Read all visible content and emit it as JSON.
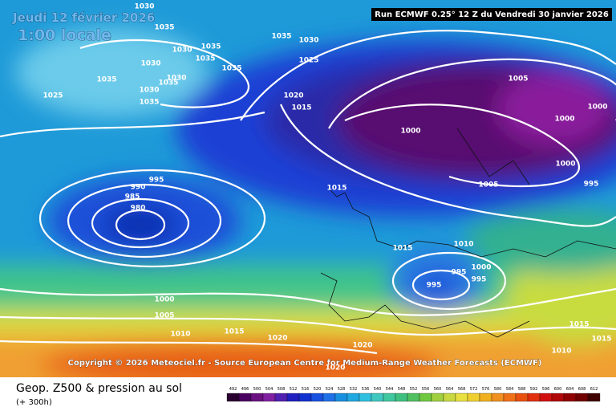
{
  "header": {
    "date": "Jeudi 12 février 2026",
    "time": "1:00 locale",
    "run": "Run ECMWF 0.25° 12 Z du Vendredi 30 janvier 2026"
  },
  "copyright": "Copyright © 2026 Meteociel.fr - Source European Centre for Medium-Range Weather Forecasts (ECMWF)",
  "footer": {
    "title": "Geop. Z500 & pression au sol",
    "lead": "(+ 300h)"
  },
  "isobar_labels": [
    "1030",
    "1035",
    "1030",
    "1035",
    "1035",
    "1035",
    "1030",
    "1035",
    "1030",
    "1035",
    "1030",
    "1035",
    "1025",
    "1035",
    "1030",
    "1025",
    "1020",
    "1015",
    "1005",
    "1000",
    "1000",
    "1000",
    "1000",
    "1005",
    "995",
    "1015",
    "995",
    "990",
    "985",
    "980",
    "1010",
    "1015",
    "1000",
    "995",
    "995",
    "995",
    "1000",
    "1005",
    "1010",
    "1015",
    "1020",
    "1020",
    "1020",
    "1015",
    "1010",
    "1015"
  ],
  "legend": {
    "ticks": [
      492,
      496,
      500,
      504,
      508,
      512,
      516,
      520,
      524,
      528,
      532,
      536,
      540,
      544,
      548,
      552,
      556,
      560,
      564,
      568,
      572,
      576,
      580,
      584,
      588,
      592,
      596,
      600,
      604,
      608,
      612
    ]
  }
}
